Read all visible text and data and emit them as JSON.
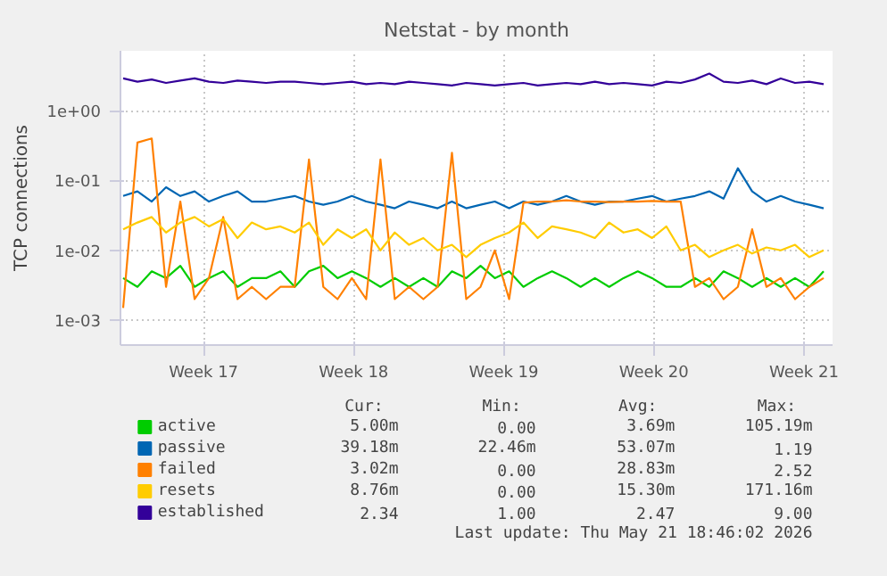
{
  "chart_data": {
    "type": "line",
    "title": "Netstat - by month",
    "ylabel": "TCP connections",
    "x": [
      "2026-04-19T18:00",
      "2026-04-20T10:00",
      "2026-04-21T02:00",
      "2026-04-21T18:00",
      "2026-04-22T10:00",
      "2026-04-23T02:00",
      "2026-04-23T18:00",
      "2026-04-24T10:00",
      "2026-04-25T02:00",
      "2026-04-25T18:00",
      "2026-04-26T10:00",
      "2026-04-27T02:00",
      "2026-04-27T18:00",
      "2026-04-28T10:00",
      "2026-04-29T02:00",
      "2026-04-29T18:00",
      "2026-04-30T10:00",
      "2026-05-01T02:00",
      "2026-05-01T18:00",
      "2026-05-02T10:00",
      "2026-05-03T02:00",
      "2026-05-03T18:00",
      "2026-05-04T10:00",
      "2026-05-05T02:00",
      "2026-05-05T18:00",
      "2026-05-06T10:00",
      "2026-05-07T02:00",
      "2026-05-07T18:00",
      "2026-05-08T10:00",
      "2026-05-09T02:00",
      "2026-05-09T18:00",
      "2026-05-10T10:00",
      "2026-05-11T02:00",
      "2026-05-11T18:00",
      "2026-05-12T10:00",
      "2026-05-13T02:00",
      "2026-05-13T18:00",
      "2026-05-14T10:00",
      "2026-05-15T02:00",
      "2026-05-15T18:00",
      "2026-05-16T10:00",
      "2026-05-17T02:00",
      "2026-05-17T18:00",
      "2026-05-18T10:00",
      "2026-05-19T02:00",
      "2026-05-19T18:00",
      "2026-05-20T10:00",
      "2026-05-21T02:00",
      "2026-05-21T18:00",
      "2026-05-22T10:00"
    ],
    "series": [
      {
        "name": "active",
        "color": "#00cc00",
        "values": [
          0.004,
          0.003,
          0.005,
          0.004,
          0.006,
          0.003,
          0.004,
          0.005,
          0.003,
          0.004,
          0.004,
          0.005,
          0.003,
          0.005,
          0.006,
          0.004,
          0.005,
          0.004,
          0.003,
          0.004,
          0.003,
          0.004,
          0.003,
          0.005,
          0.004,
          0.006,
          0.004,
          0.005,
          0.003,
          0.004,
          0.005,
          0.004,
          0.003,
          0.004,
          0.003,
          0.004,
          0.005,
          0.004,
          0.003,
          0.003,
          0.004,
          0.003,
          0.005,
          0.004,
          0.003,
          0.004,
          0.003,
          0.004,
          0.003,
          0.005
        ]
      },
      {
        "name": "passive",
        "color": "#0066b3",
        "values": [
          0.06,
          0.07,
          0.05,
          0.08,
          0.06,
          0.07,
          0.05,
          0.06,
          0.07,
          0.05,
          0.05,
          0.055,
          0.06,
          0.05,
          0.045,
          0.05,
          0.06,
          0.05,
          0.045,
          0.04,
          0.05,
          0.045,
          0.04,
          0.05,
          0.04,
          0.045,
          0.05,
          0.04,
          0.05,
          0.045,
          0.05,
          0.06,
          0.05,
          0.045,
          0.05,
          0.05,
          0.055,
          0.06,
          0.05,
          0.055,
          0.06,
          0.07,
          0.055,
          0.15,
          0.07,
          0.05,
          0.06,
          0.05,
          0.045,
          0.04
        ]
      },
      {
        "name": "failed",
        "color": "#ff8000",
        "values": [
          0.0015,
          0.35,
          0.4,
          0.003,
          0.05,
          0.002,
          0.004,
          0.03,
          0.002,
          0.003,
          0.002,
          0.003,
          0.003,
          0.2,
          0.003,
          0.002,
          0.004,
          0.002,
          0.2,
          0.002,
          0.003,
          0.002,
          0.003,
          0.25,
          0.002,
          0.003,
          0.01,
          0.002,
          0.048,
          0.05,
          0.05,
          0.052,
          0.05,
          0.05,
          0.049,
          0.05,
          0.05,
          0.051,
          0.05,
          0.05,
          0.003,
          0.004,
          0.002,
          0.003,
          0.02,
          0.003,
          0.004,
          0.002,
          0.003,
          0.004
        ]
      },
      {
        "name": "resets",
        "color": "#ffcc00",
        "values": [
          0.02,
          0.025,
          0.03,
          0.018,
          0.025,
          0.03,
          0.022,
          0.028,
          0.015,
          0.025,
          0.02,
          0.022,
          0.018,
          0.025,
          0.012,
          0.02,
          0.015,
          0.02,
          0.01,
          0.018,
          0.012,
          0.015,
          0.01,
          0.012,
          0.008,
          0.012,
          0.015,
          0.018,
          0.025,
          0.015,
          0.022,
          0.02,
          0.018,
          0.015,
          0.025,
          0.018,
          0.02,
          0.015,
          0.022,
          0.01,
          0.012,
          0.008,
          0.01,
          0.012,
          0.009,
          0.011,
          0.01,
          0.012,
          0.008,
          0.01
        ]
      },
      {
        "name": "established",
        "color": "#330099",
        "values": [
          2.9,
          2.6,
          2.8,
          2.5,
          2.7,
          2.9,
          2.6,
          2.5,
          2.7,
          2.6,
          2.5,
          2.6,
          2.6,
          2.5,
          2.4,
          2.5,
          2.6,
          2.4,
          2.5,
          2.4,
          2.6,
          2.5,
          2.4,
          2.3,
          2.5,
          2.4,
          2.3,
          2.4,
          2.5,
          2.3,
          2.4,
          2.5,
          2.4,
          2.6,
          2.4,
          2.5,
          2.4,
          2.3,
          2.6,
          2.5,
          2.8,
          3.4,
          2.6,
          2.5,
          2.7,
          2.4,
          2.9,
          2.5,
          2.6,
          2.4
        ]
      }
    ],
    "log": true,
    "xlim": [
      "2026-04-19T15:00",
      "2026-05-22T20:00"
    ],
    "ylim": [
      0.00044,
      7.2
    ],
    "xticks": [
      {
        "value": "2026-04-23T12:00",
        "label": "Week 17"
      },
      {
        "value": "2026-04-30T12:00",
        "label": "Week 18"
      },
      {
        "value": "2026-05-07T12:00",
        "label": "Week 19"
      },
      {
        "value": "2026-05-14T12:00",
        "label": "Week 20"
      },
      {
        "value": "2026-05-21T12:00",
        "label": "Week 21"
      }
    ],
    "yticks": [
      {
        "value": 0.001,
        "label": "1e-03"
      },
      {
        "value": 0.01,
        "label": "1e-02"
      },
      {
        "value": 0.1,
        "label": "1e-01"
      },
      {
        "value": 1,
        "label": "1e+00"
      }
    ],
    "grid": true,
    "legend": "bottom",
    "marker": "none",
    "line_style": "solid",
    "annotations": [
      "Cur:",
      "Min:",
      "Avg:",
      "Max:",
      "5.00m",
      "0.00",
      "3.69m",
      "105.19m",
      "39.18m",
      "22.46m",
      "53.07m",
      "1.19",
      "3.02m",
      "0.00",
      "28.83m",
      "2.52",
      "8.76m",
      "0.00",
      "15.30m",
      "171.16m",
      "2.34",
      "1.00",
      "2.47",
      "9.00",
      "Last update: Thu May 21 18:46:02 2026"
    ]
  }
}
